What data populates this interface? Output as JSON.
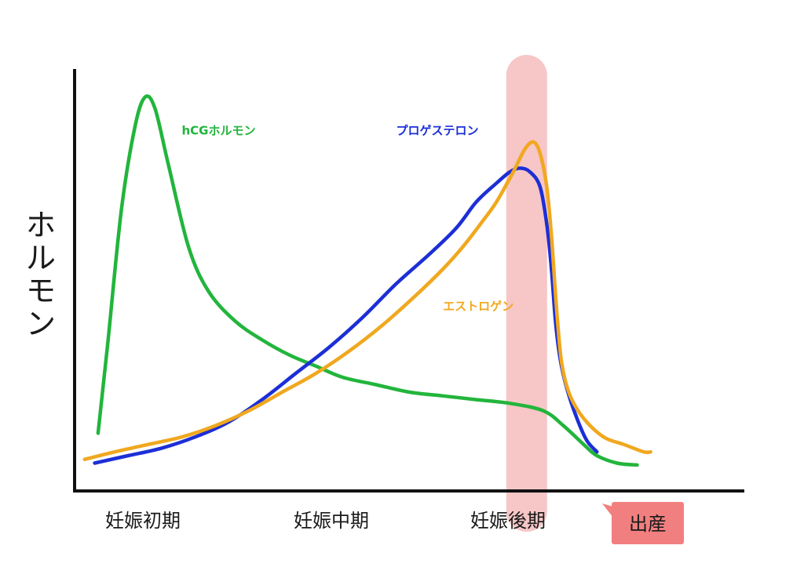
{
  "chart_data": {
    "type": "line",
    "title": "",
    "ylabel": "ホルモン",
    "xlabel": "",
    "categories": [
      "妊娠初期",
      "妊娠中期",
      "妊娠後期"
    ],
    "x_range": [
      0,
      100
    ],
    "y_range": [
      0,
      100
    ],
    "grid": false,
    "series": [
      {
        "name": "hCGホルモン",
        "color": "#22b53c",
        "label_x": 16,
        "label_y": 90,
        "points": [
          [
            3.5,
            10
          ],
          [
            5,
            35
          ],
          [
            7,
            70
          ],
          [
            9,
            92
          ],
          [
            10.5,
            100
          ],
          [
            12,
            97
          ],
          [
            14,
            82
          ],
          [
            17,
            60
          ],
          [
            20,
            48
          ],
          [
            24,
            40
          ],
          [
            28,
            35
          ],
          [
            32,
            31
          ],
          [
            36,
            28
          ],
          [
            40,
            25
          ],
          [
            45,
            23
          ],
          [
            50,
            21
          ],
          [
            55,
            20
          ],
          [
            60,
            19
          ],
          [
            65,
            18
          ],
          [
            70,
            16
          ],
          [
            73,
            12
          ],
          [
            76,
            7
          ],
          [
            78,
            4
          ],
          [
            81,
            2
          ],
          [
            84,
            1.5
          ]
        ]
      },
      {
        "name": "プロゲステロン",
        "color": "#1c2fd6",
        "label_x": 48,
        "label_y": 90,
        "points": [
          [
            3,
            2
          ],
          [
            8,
            4
          ],
          [
            13,
            6
          ],
          [
            18,
            9
          ],
          [
            23,
            13
          ],
          [
            28,
            19
          ],
          [
            33,
            26
          ],
          [
            38,
            33
          ],
          [
            43,
            41
          ],
          [
            48,
            50
          ],
          [
            53,
            58
          ],
          [
            57,
            65
          ],
          [
            60,
            72
          ],
          [
            63,
            77
          ],
          [
            65,
            80
          ],
          [
            66.5,
            81
          ],
          [
            68,
            80
          ],
          [
            69.5,
            76
          ],
          [
            70.5,
            66
          ],
          [
            71.2,
            54
          ],
          [
            71.8,
            40
          ],
          [
            72.5,
            30
          ],
          [
            73.5,
            22
          ],
          [
            75,
            14
          ],
          [
            76.5,
            8
          ],
          [
            78,
            5
          ]
        ]
      },
      {
        "name": "エストロゲン",
        "color": "#f0a81f",
        "label_x": 55,
        "label_y": 43,
        "points": [
          [
            1.5,
            3
          ],
          [
            6,
            5
          ],
          [
            11,
            7
          ],
          [
            16,
            9
          ],
          [
            21,
            12
          ],
          [
            26,
            16
          ],
          [
            31,
            21
          ],
          [
            36,
            26
          ],
          [
            41,
            32
          ],
          [
            46,
            39
          ],
          [
            51,
            47
          ],
          [
            55,
            54
          ],
          [
            58,
            60
          ],
          [
            61,
            67
          ],
          [
            63,
            72
          ],
          [
            65.5,
            80
          ],
          [
            67.2,
            86
          ],
          [
            68.5,
            88
          ],
          [
            69.5,
            85
          ],
          [
            70.5,
            76
          ],
          [
            71.2,
            63
          ],
          [
            71.7,
            50
          ],
          [
            72.2,
            38
          ],
          [
            72.8,
            28
          ],
          [
            74,
            20
          ],
          [
            76,
            14
          ],
          [
            79,
            9
          ],
          [
            82,
            7
          ],
          [
            85,
            5
          ],
          [
            86,
            5
          ]
        ]
      }
    ],
    "annotation": {
      "label": "出産",
      "band_x": 67.5,
      "band_color": "#f7c3c3",
      "box_color": "#f27f7f"
    }
  }
}
